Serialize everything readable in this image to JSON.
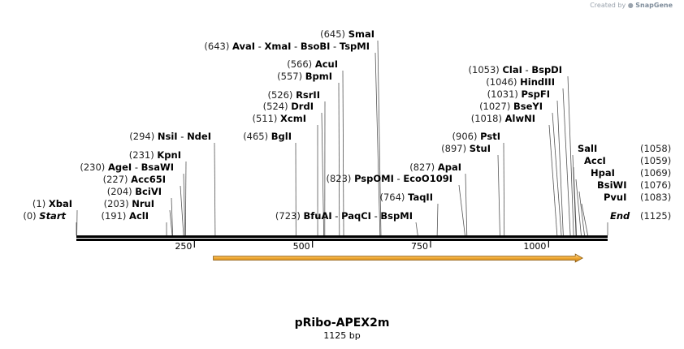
{
  "brand": {
    "prefix": "Created by",
    "name": "SnapGene"
  },
  "plasmid": {
    "name": "pRibo-APEX2m",
    "length_label": "1125 bp",
    "length": 1125
  },
  "ticks": [
    {
      "bp": 250,
      "label": "250"
    },
    {
      "bp": 500,
      "label": "500"
    },
    {
      "bp": 750,
      "label": "750"
    },
    {
      "bp": 1000,
      "label": "1000"
    }
  ],
  "feature": {
    "start": 290,
    "end": 1072,
    "direction": "forward",
    "color": "#f0a830"
  },
  "sites": [
    {
      "parts": [
        {
          "pos": "(645)",
          "names": [
            "SmaI"
          ]
        }
      ],
      "bp": 645
    },
    {
      "parts": [
        {
          "pos": "(643)",
          "names": [
            "AvaI",
            "XmaI",
            "BsoBI",
            "TspMI"
          ]
        }
      ],
      "bp": 643
    },
    {
      "parts": [
        {
          "pos": "(566)",
          "names": [
            "AcuI"
          ]
        }
      ],
      "bp": 566
    },
    {
      "parts": [
        {
          "pos": "(557)",
          "names": [
            "BpmI"
          ]
        }
      ],
      "bp": 557
    },
    {
      "parts": [
        {
          "pos": "(526)",
          "names": [
            "RsrII"
          ]
        }
      ],
      "bp": 526
    },
    {
      "parts": [
        {
          "pos": "(524)",
          "names": [
            "DrdI"
          ]
        }
      ],
      "bp": 524
    },
    {
      "parts": [
        {
          "pos": "(511)",
          "names": [
            "XcmI"
          ]
        }
      ],
      "bp": 511
    },
    {
      "parts": [
        {
          "pos": "(294)",
          "names": [
            "NsiI",
            "NdeI"
          ]
        }
      ],
      "bp": 294
    },
    {
      "parts": [
        {
          "pos": "(465)",
          "names": [
            "BglI"
          ]
        }
      ],
      "bp": 465
    },
    {
      "parts": [
        {
          "pos": "(231)",
          "names": [
            "KpnI"
          ]
        }
      ],
      "bp": 231
    },
    {
      "parts": [
        {
          "pos": "(230)",
          "names": [
            "AgeI",
            "BsaWI"
          ]
        }
      ],
      "bp": 230
    },
    {
      "parts": [
        {
          "pos": "(227)",
          "names": [
            "Acc65I"
          ]
        }
      ],
      "bp": 227
    },
    {
      "parts": [
        {
          "pos": "(204)",
          "names": [
            "BciVI"
          ]
        }
      ],
      "bp": 204
    },
    {
      "parts": [
        {
          "pos": "(203)",
          "names": [
            "NruI"
          ]
        }
      ],
      "bp": 203
    },
    {
      "parts": [
        {
          "pos": "(1)",
          "names": [
            "XbaI"
          ]
        }
      ],
      "bp": 1
    },
    {
      "parts": [
        {
          "pos": "(191)",
          "names": [
            "AclI"
          ]
        }
      ],
      "bp": 191
    },
    {
      "parts": [
        {
          "pos": "(0)",
          "names": [
            "Start"
          ]
        }
      ],
      "bp": 0,
      "special": true
    },
    {
      "parts": [
        {
          "pos": "(723)",
          "names": [
            "BfuAI",
            "PaqCI",
            "BspMI"
          ]
        }
      ],
      "bp": 723
    },
    {
      "parts": [
        {
          "pos": "(823)",
          "names": [
            "PspOMI",
            "EcoO109I"
          ]
        }
      ],
      "bp": 823
    },
    {
      "parts": [
        {
          "pos": "(764)",
          "names": [
            "TaqII"
          ]
        }
      ],
      "bp": 764
    },
    {
      "parts": [
        {
          "pos": "(827)",
          "names": [
            "ApaI"
          ]
        }
      ],
      "bp": 827
    },
    {
      "parts": [
        {
          "pos": "(906)",
          "names": [
            "PstI"
          ]
        }
      ],
      "bp": 906
    },
    {
      "parts": [
        {
          "pos": "(897)",
          "names": [
            "StuI"
          ]
        }
      ],
      "bp": 897
    },
    {
      "parts": [
        {
          "pos": "(1053)",
          "names": [
            "ClaI",
            "BspDI"
          ]
        }
      ],
      "bp": 1053
    },
    {
      "parts": [
        {
          "pos": "(1046)",
          "names": [
            "HindIII"
          ]
        }
      ],
      "bp": 1046
    },
    {
      "parts": [
        {
          "pos": "(1031)",
          "names": [
            "PspFI"
          ]
        }
      ],
      "bp": 1031
    },
    {
      "parts": [
        {
          "pos": "(1027)",
          "names": [
            "BseYI"
          ]
        }
      ],
      "bp": 1027
    },
    {
      "parts": [
        {
          "pos": "(1018)",
          "names": [
            "AlwNI"
          ]
        }
      ],
      "bp": 1018
    },
    {
      "parts": [
        {
          "pos": "(1058)",
          "names": [
            "SalI"
          ]
        }
      ],
      "bp": 1058,
      "right": true
    },
    {
      "parts": [
        {
          "pos": "(1059)",
          "names": [
            "AccI"
          ]
        }
      ],
      "bp": 1059,
      "right": true
    },
    {
      "parts": [
        {
          "pos": "(1069)",
          "names": [
            "HpaI"
          ]
        }
      ],
      "bp": 1069,
      "right": true
    },
    {
      "parts": [
        {
          "pos": "(1076)",
          "names": [
            "BsiWI"
          ]
        }
      ],
      "bp": 1076,
      "right": true
    },
    {
      "parts": [
        {
          "pos": "(1083)",
          "names": [
            "PvuI"
          ]
        }
      ],
      "bp": 1083,
      "right": true
    },
    {
      "parts": [
        {
          "pos": "(1125)",
          "names": [
            "End"
          ]
        }
      ],
      "bp": 1125,
      "right": true,
      "special": true
    }
  ]
}
